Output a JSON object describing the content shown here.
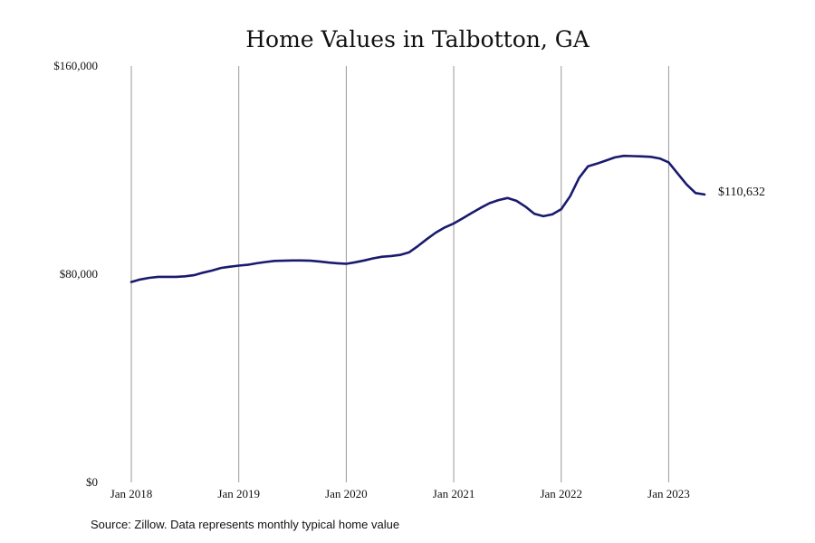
{
  "chart_data": {
    "type": "line",
    "title": "Home Values in Talbotton, GA",
    "xlabel": "",
    "ylabel": "",
    "ylim": [
      0,
      160000
    ],
    "xlim": [
      "2018-01",
      "2023-05"
    ],
    "grid": "vertical lines at each January",
    "y_ticks": [
      {
        "value": 0,
        "label": "$0"
      },
      {
        "value": 80000,
        "label": "$80,000"
      },
      {
        "value": 160000,
        "label": "$160,000"
      }
    ],
    "x_ticks": [
      {
        "value": "2018-01",
        "label": "Jan 2018"
      },
      {
        "value": "2019-01",
        "label": "Jan 2019"
      },
      {
        "value": "2020-01",
        "label": "Jan 2020"
      },
      {
        "value": "2021-01",
        "label": "Jan 2021"
      },
      {
        "value": "2022-01",
        "label": "Jan 2022"
      },
      {
        "value": "2023-01",
        "label": "Jan 2023"
      }
    ],
    "line_color": "#1a1a6e",
    "end_label": "$110,632",
    "series": [
      {
        "x": [
          "2018-01",
          "2018-02",
          "2018-03",
          "2018-04",
          "2018-05",
          "2018-06",
          "2018-07",
          "2018-08",
          "2018-09",
          "2018-10",
          "2018-11",
          "2018-12",
          "2019-01",
          "2019-02",
          "2019-03",
          "2019-04",
          "2019-05",
          "2019-06",
          "2019-07",
          "2019-08",
          "2019-09",
          "2019-10",
          "2019-11",
          "2019-12",
          "2020-01",
          "2020-02",
          "2020-03",
          "2020-04",
          "2020-05",
          "2020-06",
          "2020-07",
          "2020-08",
          "2020-09",
          "2020-10",
          "2020-11",
          "2020-12",
          "2021-01",
          "2021-02",
          "2021-03",
          "2021-04",
          "2021-05",
          "2021-06",
          "2021-07",
          "2021-08",
          "2021-09",
          "2021-10",
          "2021-11",
          "2021-12",
          "2022-01",
          "2022-02",
          "2022-03",
          "2022-04",
          "2022-05",
          "2022-06",
          "2022-07",
          "2022-08",
          "2022-09",
          "2022-10",
          "2022-11",
          "2022-12",
          "2023-01",
          "2023-02",
          "2023-03",
          "2023-04",
          "2023-05"
        ],
        "values": [
          77000,
          78000,
          78600,
          79000,
          79000,
          79000,
          79200,
          79600,
          80600,
          81400,
          82400,
          82900,
          83300,
          83600,
          84200,
          84700,
          85100,
          85200,
          85300,
          85300,
          85200,
          84900,
          84500,
          84200,
          84000,
          84600,
          85300,
          86100,
          86700,
          87000,
          87400,
          88400,
          90800,
          93500,
          96000,
          98000,
          99500,
          101500,
          103500,
          105500,
          107300,
          108500,
          109300,
          108200,
          106000,
          103200,
          102300,
          103000,
          105000,
          110000,
          117000,
          121500,
          122500,
          123700,
          124900,
          125500,
          125400,
          125300,
          125100,
          124500,
          123000,
          118700,
          114500,
          111200,
          110632
        ]
      }
    ]
  },
  "footer": {
    "source": "Source: Zillow. Data represents monthly typical home value"
  }
}
